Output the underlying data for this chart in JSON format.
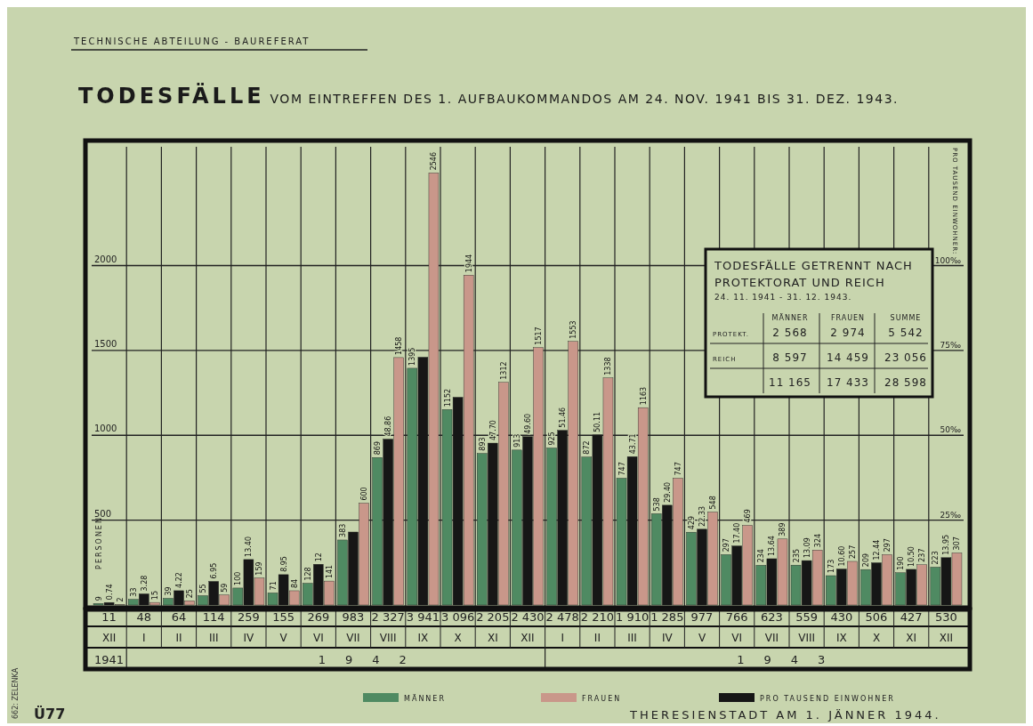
{
  "chart_data": {
    "type": "bar",
    "title": "TODESFÄLLE VOM EINTREFFEN DES 1. AUFBAUKOMMANDOS AM 24. NOV. 1941 BIS 31. DEZ. 1943.",
    "ylabel": "PERSONEN",
    "y2label": "PRO TAUSEND EINWOHNER:",
    "categories": [
      "XII",
      "I",
      "II",
      "III",
      "IV",
      "V",
      "VI",
      "VII",
      "VIII",
      "IX",
      "X",
      "XI",
      "XII",
      "I",
      "II",
      "III",
      "IV",
      "V",
      "VI",
      "VII",
      "VIII",
      "IX",
      "X",
      "XI",
      "XII"
    ],
    "series": [
      {
        "name": "MÄNNER",
        "color": "#4f8a62",
        "values": [
          9,
          33,
          39,
          55,
          100,
          71,
          128,
          383,
          869,
          1395,
          1152,
          893,
          913,
          925,
          872,
          747,
          538,
          429,
          297,
          234,
          235,
          173,
          209,
          190,
          223
        ],
        "value_labels": [
          "9",
          "33",
          "39",
          "55",
          "100",
          "71",
          "128",
          "383",
          "869",
          "1395",
          "1152",
          "893",
          "913",
          "925",
          "872",
          "747",
          "538",
          "429",
          "297",
          "234",
          "235",
          "173",
          "209",
          "190",
          "223"
        ]
      },
      {
        "name": "PRO TAUSEND EINWOHNER",
        "color": "#161616",
        "axis": "y2",
        "values": [
          0.74,
          3.28,
          4.22,
          6.95,
          13.4,
          8.95,
          12,
          21.5,
          48.86,
          73.0,
          61.2,
          47.7,
          49.6,
          51.46,
          50.11,
          43.71,
          29.4,
          22.33,
          17.4,
          13.64,
          13.09,
          10.6,
          12.44,
          10.5,
          13.95
        ],
        "value_labels": [
          "0.74",
          "3.28",
          "4.22",
          "6.95",
          "13.40",
          "8.95",
          "12",
          null,
          "48.86",
          null,
          null,
          "47.70",
          "49.60",
          "51.46",
          "50.11",
          "43.71",
          "29.40",
          "22.33",
          "17.40",
          "13.64",
          "13.09",
          "10.60",
          "12.44",
          "10.50",
          "13.95"
        ]
      },
      {
        "name": "FRAUEN",
        "color": "#c9978a",
        "values": [
          2,
          15,
          25,
          59,
          159,
          84,
          141,
          600,
          1458,
          2546,
          1944,
          1312,
          1517,
          1553,
          1338,
          1163,
          747,
          548,
          469,
          389,
          324,
          257,
          297,
          237,
          307
        ],
        "value_labels": [
          "2",
          "15",
          "25",
          "59",
          "159",
          "84",
          "141",
          "600",
          "1458",
          "2546",
          "1944",
          "1312",
          "1517",
          "1553",
          "1338",
          "1163",
          "747",
          "548",
          "469",
          "389",
          "324",
          "257",
          "297",
          "237",
          "307"
        ]
      }
    ],
    "totals": [
      "11",
      "48",
      "64",
      "114",
      "259",
      "155",
      "269",
      "983",
      "2 327",
      "3 941",
      "3 096",
      "2 205",
      "2 430",
      "2 478",
      "2 210",
      "1 910",
      "1 285",
      "977",
      "766",
      "623",
      "559",
      "430",
      "506",
      "427",
      "530"
    ],
    "ylim": [
      0,
      2700
    ],
    "yticks": [
      500,
      1000,
      1500,
      2000
    ],
    "y2lim": [
      0,
      135
    ],
    "y2ticks": [
      {
        "value": 25,
        "label": "25‰"
      },
      {
        "value": 50,
        "label": "50‰"
      },
      {
        "value": 75,
        "label": "75‰"
      },
      {
        "value": 100,
        "label": "100‰"
      }
    ],
    "grid": true,
    "legend": "bottom",
    "annotations": [
      "TECHNISCHE ABTEILUNG - BAUREFERAT",
      "THERESIENSTADT AM 1. JÄNNER 1944.",
      "Ü77",
      "662: ZELENKA",
      "1941",
      "1942",
      "1943",
      "TODESFÄLLE GETRENNT NACH",
      "PROTEKTORAT UND REICH",
      "24. 11. 1941 - 31. 12. 1943.",
      "MÄNNER",
      "FRAUEN",
      "SUMME",
      "PROTEKT.",
      "2 568",
      "2 974",
      "5 542",
      "REICH",
      "8 597",
      "14 459",
      "23 056",
      "11 165",
      "17 433",
      "28 598"
    ]
  }
}
